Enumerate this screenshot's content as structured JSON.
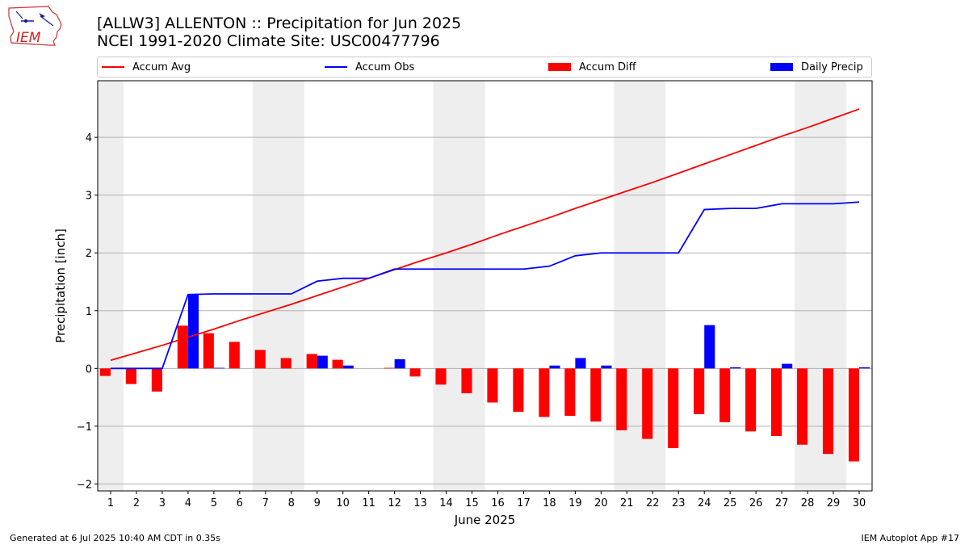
{
  "header": {
    "logo_text": "IEM",
    "title_line1": "[ALLW3] ALLENTON :: Precipitation for Jun 2025",
    "title_line2": "NCEI 1991-2020 Climate Site: USC00477796"
  },
  "legend": {
    "accum_avg": "Accum Avg",
    "accum_obs": "Accum Obs",
    "accum_diff": "Accum Diff",
    "daily_precip": "Daily Precip"
  },
  "footer": {
    "left": "Generated at 6 Jul 2025 10:40 AM CDT in 0.35s",
    "right": "IEM Autoplot App #17"
  },
  "colors": {
    "avg": "#ff0000",
    "obs": "#0000ff",
    "diff": "#ff0000",
    "daily": "#0000ff",
    "weekend_shade": "#eeeeee",
    "grid": "#b0b0b0"
  },
  "chart_data": {
    "type": "bar",
    "xlabel": "June 2025",
    "ylabel": "Precipitation [inch]",
    "x": [
      1,
      2,
      3,
      4,
      5,
      6,
      7,
      8,
      9,
      10,
      11,
      12,
      13,
      14,
      15,
      16,
      17,
      18,
      19,
      20,
      21,
      22,
      23,
      24,
      25,
      26,
      27,
      28,
      29,
      30
    ],
    "xlim": [
      0.5,
      30.5
    ],
    "ylim": [
      -2.12,
      4.98
    ],
    "yticks": [
      -2,
      -1,
      0,
      1,
      2,
      3,
      4
    ],
    "ytick_labels": [
      "−2",
      "−1",
      "0",
      "1",
      "2",
      "3",
      "4"
    ],
    "grid": true,
    "legend_position": "top",
    "shaded_weekends": [
      [
        0.5,
        1.5
      ],
      [
        6.5,
        8.5
      ],
      [
        13.5,
        15.5
      ],
      [
        20.5,
        22.5
      ],
      [
        27.5,
        29.5
      ]
    ],
    "series": [
      {
        "name": "Accum Avg",
        "type": "line",
        "values": [
          0.14,
          0.27,
          0.4,
          0.54,
          0.68,
          0.83,
          0.97,
          1.11,
          1.26,
          1.41,
          1.56,
          1.71,
          1.86,
          2.0,
          2.15,
          2.31,
          2.46,
          2.61,
          2.77,
          2.92,
          3.07,
          3.22,
          3.38,
          3.54,
          3.7,
          3.86,
          4.02,
          4.17,
          4.33,
          4.49
        ]
      },
      {
        "name": "Accum Obs",
        "type": "line",
        "values": [
          0.0,
          0.0,
          0.0,
          1.28,
          1.29,
          1.29,
          1.29,
          1.29,
          1.51,
          1.56,
          1.56,
          1.72,
          1.72,
          1.72,
          1.72,
          1.72,
          1.72,
          1.77,
          1.95,
          2.0,
          2.0,
          2.0,
          2.0,
          2.75,
          2.77,
          2.77,
          2.85,
          2.85,
          2.85,
          2.88
        ]
      },
      {
        "name": "Accum Diff",
        "type": "bar",
        "values": [
          -0.13,
          -0.27,
          -0.4,
          0.74,
          0.61,
          0.46,
          0.32,
          0.18,
          0.25,
          0.15,
          0.0,
          0.01,
          -0.14,
          -0.28,
          -0.43,
          -0.59,
          -0.75,
          -0.84,
          -0.82,
          -0.92,
          -1.07,
          -1.22,
          -1.38,
          -0.79,
          -0.93,
          -1.09,
          -1.17,
          -1.32,
          -1.48,
          -1.61
        ]
      },
      {
        "name": "Daily Precip",
        "type": "bar",
        "values": [
          0.0,
          0.0,
          0.0,
          1.28,
          0.01,
          0.0,
          0.0,
          0.0,
          0.22,
          0.05,
          0.0,
          0.16,
          0.0,
          0.0,
          0.0,
          0.0,
          0.0,
          0.05,
          0.18,
          0.05,
          0.0,
          0.0,
          0.0,
          0.75,
          0.02,
          0.0,
          0.08,
          0.0,
          0.0,
          0.02
        ]
      }
    ]
  }
}
